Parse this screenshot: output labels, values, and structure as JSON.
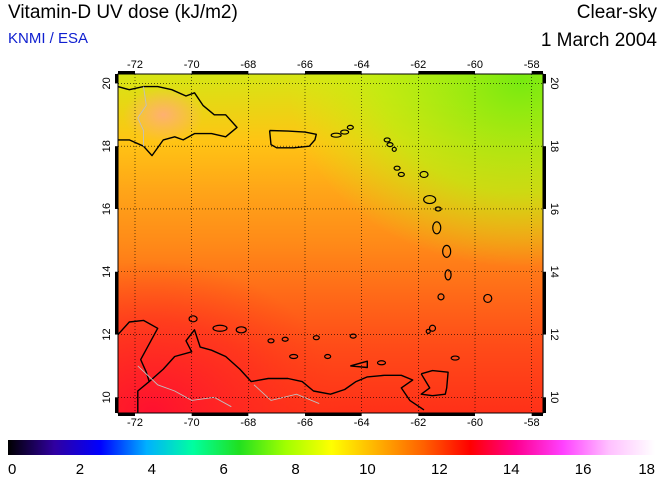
{
  "header": {
    "title": "Vitamin-D UV dose (kJ/m2)",
    "source": "KNMI / ESA",
    "mode": "Clear-sky",
    "date": "1 March 2004"
  },
  "map": {
    "lon_range": [
      -72.6,
      -57.6
    ],
    "lat_range": [
      9.5,
      20.3
    ],
    "lon_ticks": [
      -72,
      -70,
      -68,
      -66,
      -64,
      -62,
      -60,
      -58
    ],
    "lat_ticks": [
      10,
      12,
      14,
      16,
      18,
      20
    ],
    "lon_tick_labels": [
      "-72",
      "-70",
      "-68",
      "-66",
      "-64",
      "-62",
      "-60",
      "-58"
    ],
    "lat_tick_labels": [
      "10",
      "12",
      "14",
      "16",
      "18",
      "20"
    ],
    "gridlines": true,
    "colors": {
      "north_east": "#80ee10",
      "north": "#c8f010",
      "center": "#ff9a18",
      "south": "#ff4418",
      "southwest": "#ff1a20",
      "coast": "#000000",
      "borders": "#c0c0c0"
    }
  },
  "colorbar": {
    "min": 0,
    "max": 18,
    "ticks": [
      0,
      2,
      4,
      6,
      8,
      10,
      12,
      14,
      16,
      18
    ],
    "tick_labels": [
      "0",
      "2",
      "4",
      "6",
      "8",
      "10",
      "12",
      "14",
      "16",
      "18"
    ],
    "stops": [
      "#000000",
      "#3000a0",
      "#0000ff",
      "#00b0ff",
      "#00ffa0",
      "#20e020",
      "#a0ff00",
      "#ffff00",
      "#ffb000",
      "#ff6000",
      "#ff0000",
      "#ff0090",
      "#ff40ff",
      "#ffc0ff",
      "#ffffff"
    ]
  }
}
